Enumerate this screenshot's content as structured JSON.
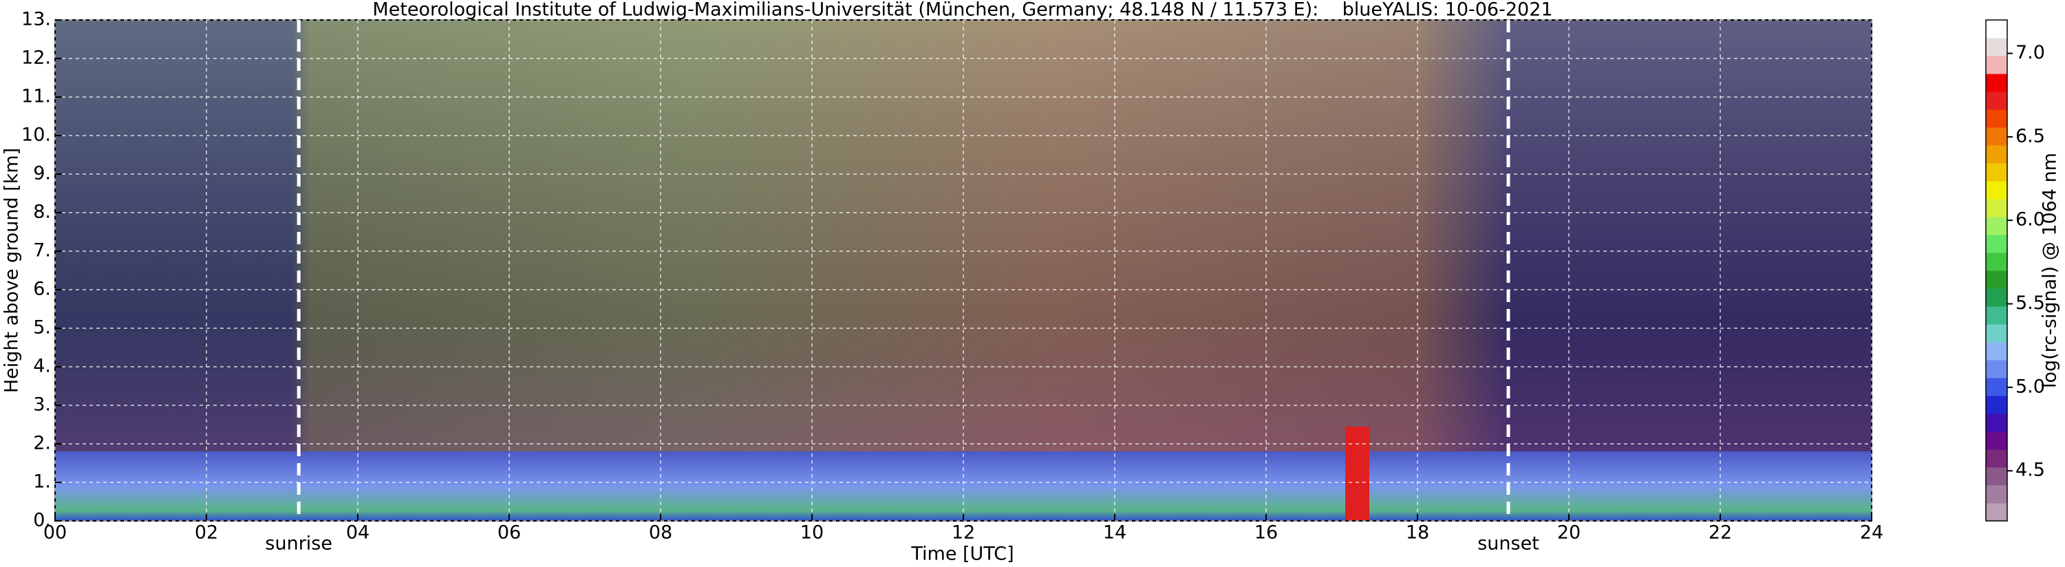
{
  "chart_data": {
    "type": "heatmap",
    "title": "Meteorological Institute of Ludwig-Maximilians-Universität (München, Germany; 48.148 N / 11.573 E):    blueYALIS: 10-06-2021",
    "x_label": "Time [UTC]",
    "y_label": "Height above ground [km]",
    "xlim": [
      0,
      24
    ],
    "xticks": [
      {
        "value": 0,
        "label": "00"
      },
      {
        "value": 2,
        "label": "02"
      },
      {
        "value": 4,
        "label": "04"
      },
      {
        "value": 6,
        "label": "06"
      },
      {
        "value": 8,
        "label": "08"
      },
      {
        "value": 10,
        "label": "10"
      },
      {
        "value": 12,
        "label": "12"
      },
      {
        "value": 14,
        "label": "14"
      },
      {
        "value": 16,
        "label": "16"
      },
      {
        "value": 18,
        "label": "18"
      },
      {
        "value": 20,
        "label": "20"
      },
      {
        "value": 22,
        "label": "22"
      },
      {
        "value": 24,
        "label": "24"
      }
    ],
    "ylim": [
      0,
      13
    ],
    "yticks": [
      {
        "value": 0,
        "label": "0."
      },
      {
        "value": 1,
        "label": "1."
      },
      {
        "value": 2,
        "label": "2."
      },
      {
        "value": 3,
        "label": "3."
      },
      {
        "value": 4,
        "label": "4."
      },
      {
        "value": 5,
        "label": "5."
      },
      {
        "value": 6,
        "label": "6."
      },
      {
        "value": 7,
        "label": "7."
      },
      {
        "value": 8,
        "label": "8."
      },
      {
        "value": 9,
        "label": "9."
      },
      {
        "value": 10,
        "label": "10."
      },
      {
        "value": 11,
        "label": "11."
      },
      {
        "value": 12,
        "label": "12."
      },
      {
        "value": 13,
        "label": "13."
      }
    ],
    "grid": true,
    "annotations": [
      {
        "text": "sunrise",
        "x": 3.22
      },
      {
        "text": "sunset",
        "x": 19.2
      }
    ],
    "colorbar": {
      "label": "log(rc-signal) @ 1064 nm",
      "clim": [
        4.2,
        7.2
      ],
      "ticks": [
        4.5,
        {
          "value": 5,
          "label": "5.0"
        },
        5.5,
        {
          "value": 6,
          "label": "6.0"
        },
        6.5,
        {
          "value": 7,
          "label": "7.0"
        }
      ],
      "colors": [
        "#b9a0b4",
        "#a27ea0",
        "#8c5a8a",
        "#7a2a7a",
        "#6a0a8c",
        "#4010b4",
        "#2028d2",
        "#3c5ae6",
        "#6e8cf0",
        "#8cb4f5",
        "#70d0c8",
        "#40bc90",
        "#20a050",
        "#2a9c2a",
        "#40c840",
        "#64e664",
        "#a0f064",
        "#d2f03c",
        "#f0f000",
        "#f0c800",
        "#f0a000",
        "#f07800",
        "#f04600",
        "#e62020",
        "#f00000",
        "#f0b4b4",
        "#e6dcdc",
        "#ffffff"
      ]
    }
  }
}
